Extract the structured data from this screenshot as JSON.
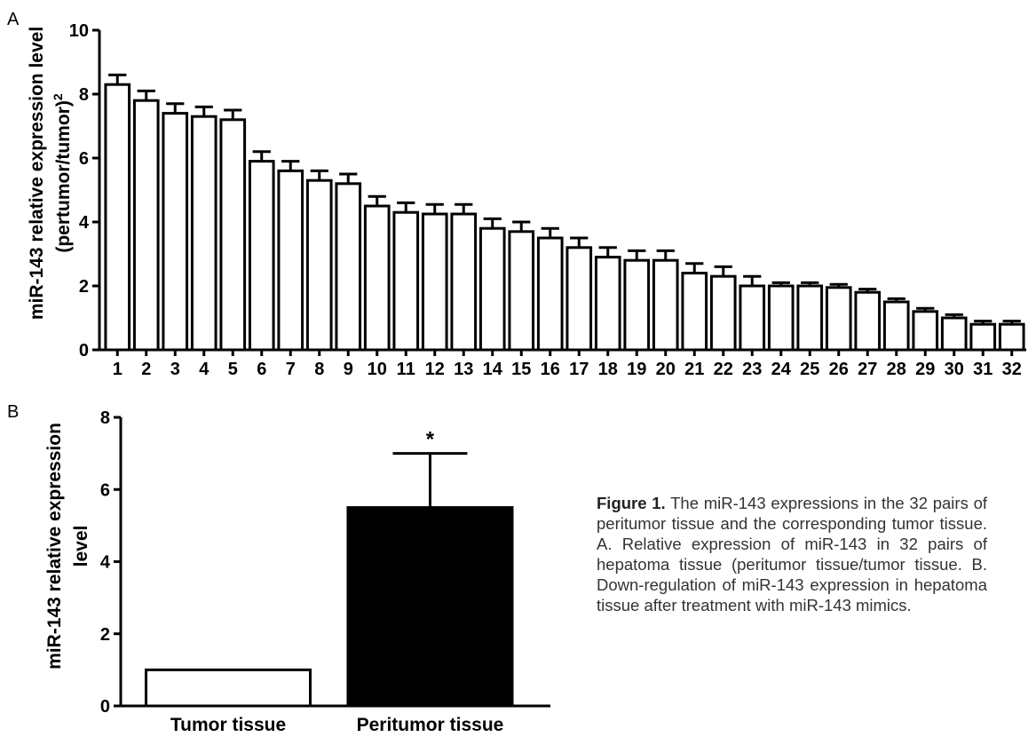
{
  "chart_data": [
    {
      "panel_label": "A",
      "type": "bar",
      "ylabel_line1": "miR-143 relative expression level",
      "ylabel_line2": "(pertumor/tumor)",
      "ylabel_sup": "2",
      "ylim": [
        0,
        10
      ],
      "yticks": [
        "0",
        "2",
        "4",
        "6",
        "8",
        "10"
      ],
      "categories": [
        "1",
        "2",
        "3",
        "4",
        "5",
        "6",
        "7",
        "8",
        "9",
        "10",
        "11",
        "12",
        "13",
        "14",
        "15",
        "16",
        "17",
        "18",
        "19",
        "20",
        "21",
        "22",
        "23",
        "24",
        "25",
        "26",
        "27",
        "28",
        "29",
        "30",
        "31",
        "32"
      ],
      "values": [
        8.3,
        7.8,
        7.4,
        7.3,
        7.2,
        5.9,
        5.6,
        5.3,
        5.2,
        4.5,
        4.3,
        4.25,
        4.25,
        3.8,
        3.7,
        3.5,
        3.2,
        2.9,
        2.8,
        2.8,
        2.4,
        2.3,
        2.0,
        2.0,
        2.0,
        1.95,
        1.8,
        1.5,
        1.2,
        1.0,
        0.8,
        0.8
      ],
      "errors": [
        0.3,
        0.3,
        0.3,
        0.3,
        0.3,
        0.3,
        0.3,
        0.3,
        0.3,
        0.3,
        0.3,
        0.3,
        0.3,
        0.3,
        0.3,
        0.3,
        0.3,
        0.3,
        0.3,
        0.3,
        0.3,
        0.3,
        0.3,
        0.1,
        0.1,
        0.1,
        0.1,
        0.1,
        0.1,
        0.1,
        0.1,
        0.1
      ],
      "bar_fill": "#ffffff",
      "bar_stroke": "#000000"
    },
    {
      "panel_label": "B",
      "type": "bar",
      "ylabel_line1": "miR-143 relative expression",
      "ylabel_line2": "level",
      "ylim": [
        0,
        8
      ],
      "yticks": [
        "0",
        "2",
        "4",
        "6",
        "8"
      ],
      "categories": [
        "Tumor tissue",
        "Peritumor tissue"
      ],
      "values": [
        1.0,
        5.5
      ],
      "errors": [
        0,
        1.5
      ],
      "fills": [
        "#ffffff",
        "#000000"
      ],
      "annotation": "*"
    }
  ],
  "caption": {
    "label": "Figure 1.",
    "text": "The miR-143 expressions in the 32 pairs of peritumor tissue and the corresponding tumor tissue. A. Relative expression of miR-143 in 32 pairs of hepatoma tissue (peritumor tissue/tumor tissue. B. Down-regulation of miR-143 expression in hepatoma tissue after treatment with miR-143 mimics."
  }
}
